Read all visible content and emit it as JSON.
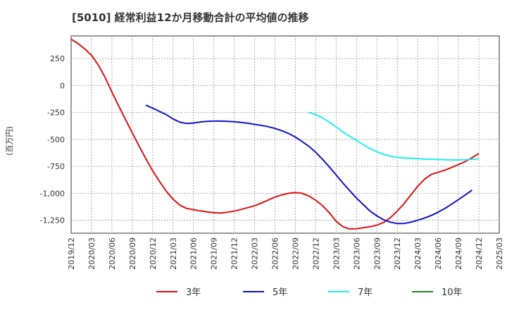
{
  "chart_data": {
    "type": "line",
    "title": "[5010]  経常利益12か月移動合計の平均値の推移",
    "ylabel": "(百万円)",
    "xlabel": "",
    "ylim": [
      -1370,
      460
    ],
    "yticks": [
      250,
      0,
      -250,
      -500,
      -750,
      -1000,
      -1250
    ],
    "ytick_labels": [
      "250",
      "0",
      "-250",
      "-500",
      "-750",
      "-1,000",
      "-1,250"
    ],
    "xticks": [
      "2019/12",
      "2020/03",
      "2020/06",
      "2020/09",
      "2020/12",
      "2021/03",
      "2021/06",
      "2021/09",
      "2021/12",
      "2022/03",
      "2022/06",
      "2022/09",
      "2022/12",
      "2023/03",
      "2023/06",
      "2023/09",
      "2023/12",
      "2024/03",
      "2024/06",
      "2024/09",
      "2024/12",
      "2025/03"
    ],
    "grid": true,
    "legend_position": "bottom",
    "series": [
      {
        "name": "3年",
        "color": "#dd1111",
        "points": [
          [
            "2019/12",
            430
          ],
          [
            "2020/01",
            390
          ],
          [
            "2020/02",
            340
          ],
          [
            "2020/03",
            280
          ],
          [
            "2020/04",
            190
          ],
          [
            "2020/05",
            75
          ],
          [
            "2020/06",
            -60
          ],
          [
            "2020/07",
            -190
          ],
          [
            "2020/08",
            -315
          ],
          [
            "2020/09",
            -440
          ],
          [
            "2020/10",
            -560
          ],
          [
            "2020/11",
            -680
          ],
          [
            "2020/12",
            -790
          ],
          [
            "2021/01",
            -890
          ],
          [
            "2021/02",
            -980
          ],
          [
            "2021/03",
            -1055
          ],
          [
            "2021/04",
            -1110
          ],
          [
            "2021/05",
            -1140
          ],
          [
            "2021/06",
            -1152
          ],
          [
            "2021/07",
            -1163
          ],
          [
            "2021/08",
            -1172
          ],
          [
            "2021/09",
            -1180
          ],
          [
            "2021/10",
            -1183
          ],
          [
            "2021/11",
            -1175
          ],
          [
            "2021/12",
            -1165
          ],
          [
            "2022/01",
            -1150
          ],
          [
            "2022/02",
            -1133
          ],
          [
            "2022/03",
            -1115
          ],
          [
            "2022/04",
            -1090
          ],
          [
            "2022/05",
            -1062
          ],
          [
            "2022/06",
            -1035
          ],
          [
            "2022/07",
            -1015
          ],
          [
            "2022/08",
            -1000
          ],
          [
            "2022/09",
            -992
          ],
          [
            "2022/10",
            -1000
          ],
          [
            "2022/11",
            -1025
          ],
          [
            "2022/12",
            -1065
          ],
          [
            "2023/01",
            -1115
          ],
          [
            "2023/02",
            -1180
          ],
          [
            "2023/03",
            -1260
          ],
          [
            "2023/04",
            -1310
          ],
          [
            "2023/05",
            -1330
          ],
          [
            "2023/06",
            -1328
          ],
          [
            "2023/07",
            -1320
          ],
          [
            "2023/08",
            -1310
          ],
          [
            "2023/09",
            -1295
          ],
          [
            "2023/10",
            -1270
          ],
          [
            "2023/11",
            -1225
          ],
          [
            "2023/12",
            -1165
          ],
          [
            "2024/01",
            -1095
          ],
          [
            "2024/02",
            -1015
          ],
          [
            "2024/03",
            -935
          ],
          [
            "2024/04",
            -870
          ],
          [
            "2024/05",
            -825
          ],
          [
            "2024/06",
            -805
          ],
          [
            "2024/07",
            -785
          ],
          [
            "2024/08",
            -760
          ],
          [
            "2024/09",
            -733
          ],
          [
            "2024/10",
            -705
          ],
          [
            "2024/11",
            -670
          ],
          [
            "2024/12",
            -630
          ]
        ]
      },
      {
        "name": "5年",
        "color": "#1111cc",
        "points": [
          [
            "2020/11",
            -182
          ],
          [
            "2020/12",
            -210
          ],
          [
            "2021/01",
            -240
          ],
          [
            "2021/02",
            -270
          ],
          [
            "2021/03",
            -310
          ],
          [
            "2021/04",
            -340
          ],
          [
            "2021/05",
            -352
          ],
          [
            "2021/06",
            -348
          ],
          [
            "2021/07",
            -338
          ],
          [
            "2021/08",
            -333
          ],
          [
            "2021/09",
            -330
          ],
          [
            "2021/10",
            -330
          ],
          [
            "2021/11",
            -332
          ],
          [
            "2021/12",
            -336
          ],
          [
            "2022/01",
            -342
          ],
          [
            "2022/02",
            -350
          ],
          [
            "2022/03",
            -360
          ],
          [
            "2022/04",
            -370
          ],
          [
            "2022/05",
            -382
          ],
          [
            "2022/06",
            -398
          ],
          [
            "2022/07",
            -420
          ],
          [
            "2022/08",
            -445
          ],
          [
            "2022/09",
            -478
          ],
          [
            "2022/10",
            -520
          ],
          [
            "2022/11",
            -565
          ],
          [
            "2022/12",
            -620
          ],
          [
            "2023/01",
            -685
          ],
          [
            "2023/02",
            -755
          ],
          [
            "2023/03",
            -830
          ],
          [
            "2023/04",
            -905
          ],
          [
            "2023/05",
            -975
          ],
          [
            "2023/06",
            -1045
          ],
          [
            "2023/07",
            -1105
          ],
          [
            "2023/08",
            -1165
          ],
          [
            "2023/09",
            -1210
          ],
          [
            "2023/10",
            -1245
          ],
          [
            "2023/11",
            -1268
          ],
          [
            "2023/12",
            -1280
          ],
          [
            "2024/01",
            -1280
          ],
          [
            "2024/02",
            -1268
          ],
          [
            "2024/03",
            -1250
          ],
          [
            "2024/04",
            -1230
          ],
          [
            "2024/05",
            -1205
          ],
          [
            "2024/06",
            -1175
          ],
          [
            "2024/07",
            -1140
          ],
          [
            "2024/08",
            -1100
          ],
          [
            "2024/09",
            -1058
          ],
          [
            "2024/10",
            -1015
          ],
          [
            "2024/11",
            -970
          ]
        ]
      },
      {
        "name": "7年",
        "color": "#22eeee",
        "points": [
          [
            "2022/11",
            -250
          ],
          [
            "2022/12",
            -270
          ],
          [
            "2023/01",
            -300
          ],
          [
            "2023/02",
            -340
          ],
          [
            "2023/03",
            -385
          ],
          [
            "2023/04",
            -430
          ],
          [
            "2023/05",
            -472
          ],
          [
            "2023/06",
            -510
          ],
          [
            "2023/07",
            -548
          ],
          [
            "2023/08",
            -585
          ],
          [
            "2023/09",
            -615
          ],
          [
            "2023/10",
            -638
          ],
          [
            "2023/11",
            -655
          ],
          [
            "2023/12",
            -666
          ],
          [
            "2024/01",
            -672
          ],
          [
            "2024/02",
            -676
          ],
          [
            "2024/03",
            -679
          ],
          [
            "2024/04",
            -682
          ],
          [
            "2024/05",
            -684
          ],
          [
            "2024/06",
            -686
          ],
          [
            "2024/07",
            -688
          ],
          [
            "2024/08",
            -690
          ],
          [
            "2024/09",
            -690
          ],
          [
            "2024/10",
            -689
          ],
          [
            "2024/11",
            -686
          ],
          [
            "2024/12",
            -680
          ]
        ]
      },
      {
        "name": "10年",
        "color": "#228822",
        "points": []
      }
    ]
  }
}
